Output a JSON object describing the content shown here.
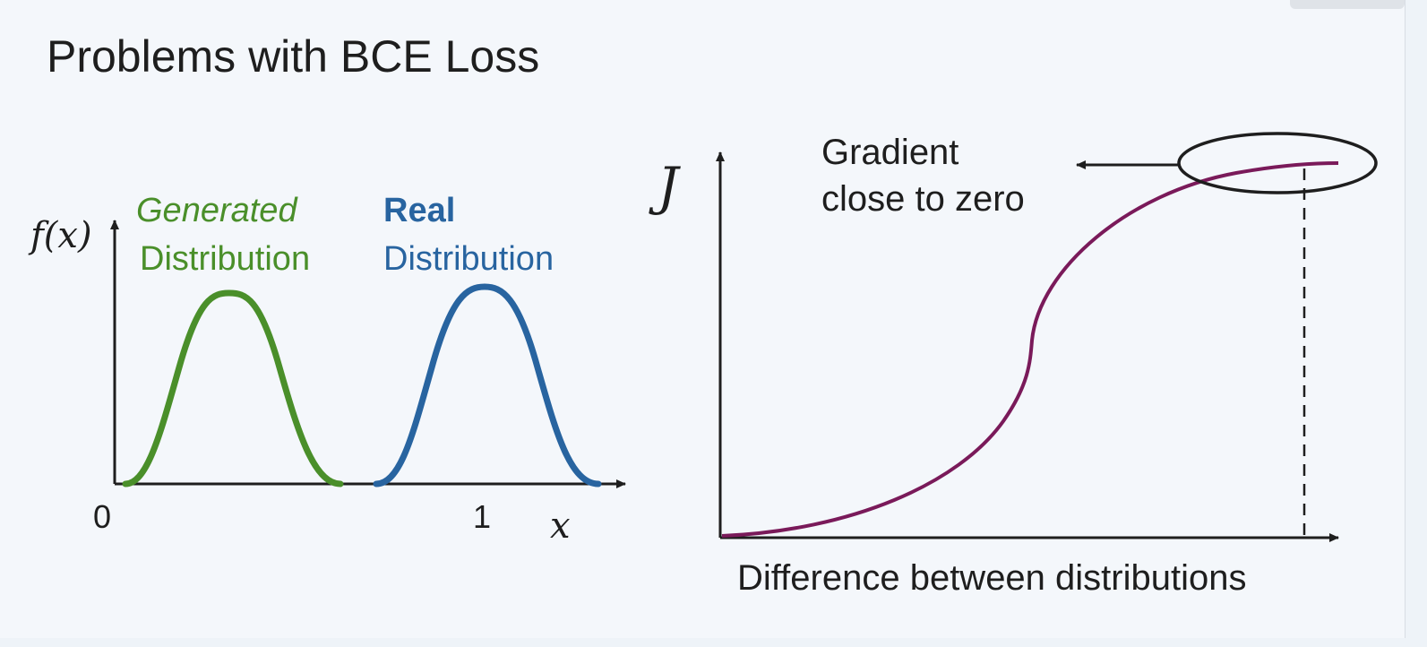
{
  "title": "Problems with BCE Loss",
  "left_figure": {
    "y_label": "f(x)",
    "x_label": "x",
    "tick_0": "0",
    "tick_1": "1",
    "generated": {
      "line1": "Generated",
      "line2": "Distribution",
      "color": "#4a8f2a"
    },
    "real": {
      "line1": "Real",
      "line2": "Distribution",
      "color": "#2864a0"
    }
  },
  "right_figure": {
    "y_label": "J",
    "x_label": "Difference between distributions",
    "annotation": {
      "line1": "Gradient",
      "line2": "close to zero"
    },
    "curve_color": "#7a1a5a"
  }
}
